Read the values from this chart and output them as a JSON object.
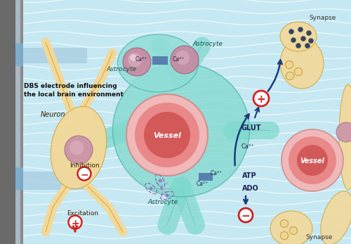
{
  "bg_color": "#c5e8f2",
  "wave_color": "#ffffff",
  "electrode_dark": "#6a6a6a",
  "electrode_mid": "#8a8a8a",
  "electrode_light": "#b0b8c0",
  "neuron_fill": "#f2d898",
  "neuron_edge": "#d4a840",
  "neuron_nucleus_fill": "#c890a8",
  "neuron_nucleus_inner": "#ddb0c0",
  "astrocyte_fill": "#7dd8cc",
  "astrocyte_edge": "#4ab0a8",
  "vessel_ring1": "#f0b8b8",
  "vessel_ring2": "#e88888",
  "vessel_ring3": "#d05050",
  "vessel_label_color": "#ffffff",
  "ca_box_fill": "#5580b0",
  "arrow_dark": "#1a3a7a",
  "red_color": "#cc2020",
  "plus_color": "#dd2020",
  "minus_color": "#cc2020",
  "synapse_dot": "#223355",
  "label_dark": "#332200",
  "label_teal": "#1a5550",
  "label_navy": "#1a2255",
  "title": "DBS electrode influencing\nthe local brain environment",
  "neuron_lbl": "Neuron",
  "inhibition_lbl": "Inhibition",
  "excitation_lbl": "Excitation",
  "astrocyte_lbl": "Astrocyte",
  "vessel_lbl": "Vessel",
  "ca_lbl": "Ca²⁺",
  "glut_lbl": "GLUT",
  "atp_lbl": "ATP",
  "ado_lbl": "ADO",
  "synapse_lbl": "Synapse"
}
